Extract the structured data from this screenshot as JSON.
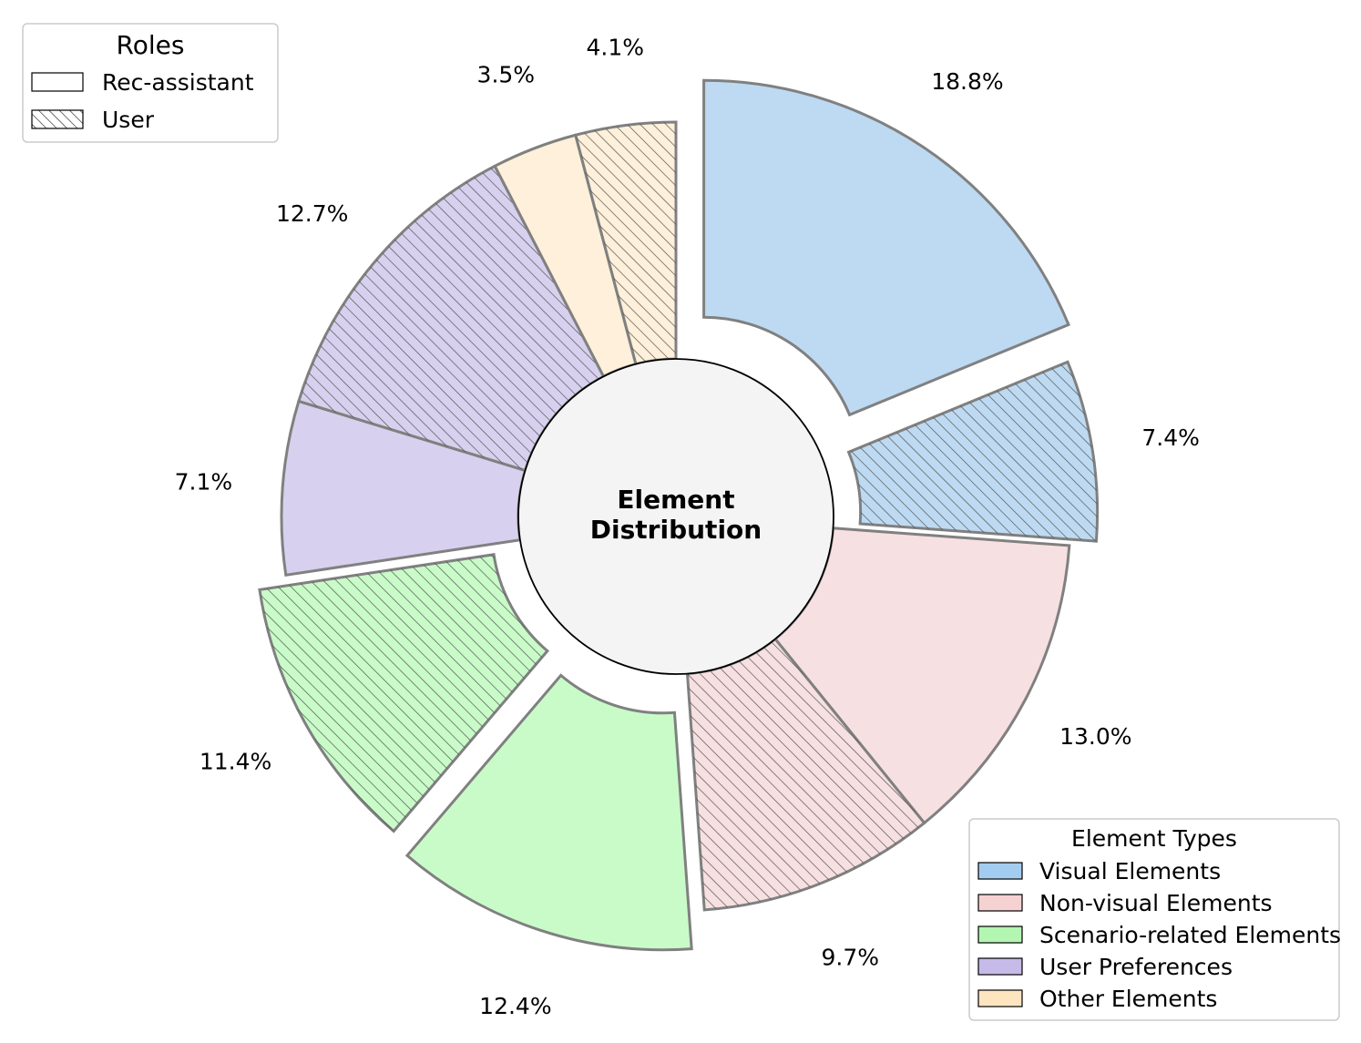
{
  "chart_data": {
    "type": "pie",
    "center_title": [
      "Element",
      "Distribution"
    ],
    "slices": [
      {
        "category": "Visual Elements",
        "role": "Rec-assistant",
        "value": 18.8,
        "label": "18.8%"
      },
      {
        "category": "Visual Elements",
        "role": "User",
        "value": 7.4,
        "label": "7.4%"
      },
      {
        "category": "Non-visual Elements",
        "role": "Rec-assistant",
        "value": 13.0,
        "label": "13.0%"
      },
      {
        "category": "Non-visual Elements",
        "role": "User",
        "value": 9.7,
        "label": "9.7%"
      },
      {
        "category": "Scenario-related Elements",
        "role": "Rec-assistant",
        "value": 12.4,
        "label": "12.4%"
      },
      {
        "category": "Scenario-related Elements",
        "role": "User",
        "value": 11.4,
        "label": "11.4%"
      },
      {
        "category": "User Preferences",
        "role": "Rec-assistant",
        "value": 7.1,
        "label": "7.1%"
      },
      {
        "category": "User Preferences",
        "role": "User",
        "value": 12.7,
        "label": "12.7%"
      },
      {
        "category": "Other Elements",
        "role": "Rec-assistant",
        "value": 3.5,
        "label": "3.5%"
      },
      {
        "category": "Other Elements",
        "role": "User",
        "value": 4.1,
        "label": "4.1%"
      }
    ],
    "legend_roles": {
      "title": "Roles",
      "placement": "top-left",
      "items": [
        {
          "name": "Rec-assistant",
          "pattern": "solid"
        },
        {
          "name": "User",
          "pattern": "hatch"
        }
      ]
    },
    "legend_types": {
      "title": "Element Types",
      "placement": "bottom-right",
      "items": [
        {
          "name": "Visual Elements",
          "color": "#BDDAF2"
        },
        {
          "name": "Non-visual Elements",
          "color": "#F7E0E1"
        },
        {
          "name": "Scenario-related Elements",
          "color": "#C9FBC9"
        },
        {
          "name": "User Preferences",
          "color": "#D7D0EE"
        },
        {
          "name": "Other Elements",
          "color": "#FEF0DA"
        }
      ]
    },
    "legend_swatch_colors": {
      "Visual Elements": "#A3CDF0",
      "Non-visual Elements": "#F6D1D2",
      "Scenario-related Elements": "#B2F6B2",
      "User Preferences": "#C5BAE8",
      "Other Elements": "#FDE5BF"
    },
    "start_angle_deg": 90,
    "direction": "clockwise"
  }
}
